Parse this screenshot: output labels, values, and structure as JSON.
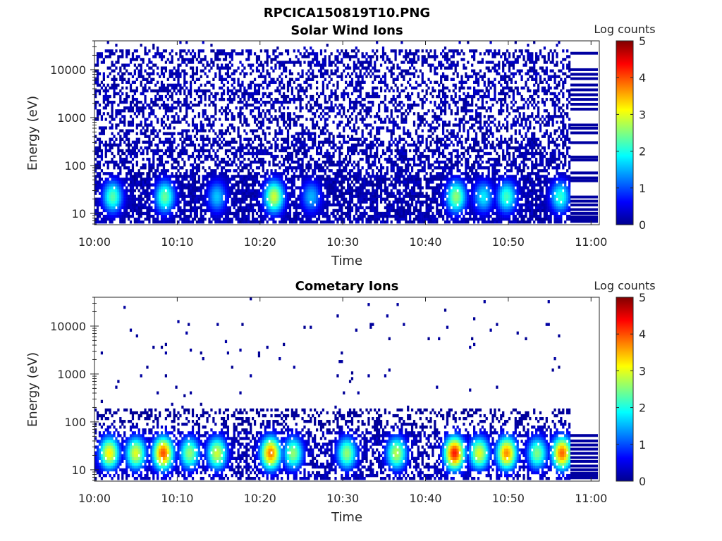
{
  "figure_title": "RPCICA150819T10.PNG",
  "colormap": [
    "#00008f",
    "#0000ff",
    "#0080ff",
    "#00ffff",
    "#80ff80",
    "#ffff00",
    "#ff8000",
    "#ff0000",
    "#800000"
  ],
  "chart_data": [
    {
      "type": "heatmap",
      "title": "Solar Wind Ions",
      "xlabel": "Time",
      "ylabel": "Energy (eV)",
      "x_range_min": [
        0,
        61
      ],
      "x_data_end_min": 57.5,
      "x_ticks": [
        "10:00",
        "10:10",
        "10:20",
        "10:30",
        "10:40",
        "10:50",
        "11:00"
      ],
      "x_tick_values_min": [
        0,
        10,
        20,
        30,
        40,
        50,
        60
      ],
      "y_scale": "log",
      "y_range": [
        5.8,
        40000
      ],
      "y_ticks": [
        "10",
        "100",
        "1000",
        "10000"
      ],
      "y_tick_values": [
        10,
        100,
        1000,
        10000
      ],
      "colorbar": {
        "label": "Log counts",
        "range": [
          0,
          5
        ],
        "ticks": [
          "0",
          "1",
          "2",
          "3",
          "4",
          "5"
        ]
      },
      "peak_events": [
        {
          "t": 2.2,
          "level": 2.3
        },
        {
          "t": 8.5,
          "level": 2.4
        },
        {
          "t": 14.8,
          "level": 1.6
        },
        {
          "t": 21.7,
          "level": 2.9
        },
        {
          "t": 26.2,
          "level": 1.5
        },
        {
          "t": 43.7,
          "level": 2.6
        },
        {
          "t": 47.0,
          "level": 1.8
        },
        {
          "t": 49.8,
          "level": 2.2
        },
        {
          "t": 56.3,
          "level": 2.1
        }
      ],
      "background_level": 0.3
    },
    {
      "type": "heatmap",
      "title": "Cometary Ions",
      "xlabel": "Time",
      "ylabel": "Energy (eV)",
      "x_range_min": [
        0,
        61
      ],
      "x_data_end_min": 57.5,
      "x_ticks": [
        "10:00",
        "10:10",
        "10:20",
        "10:30",
        "10:40",
        "10:50",
        "11:00"
      ],
      "x_tick_values_min": [
        0,
        10,
        20,
        30,
        40,
        50,
        60
      ],
      "y_scale": "log",
      "y_range": [
        5.8,
        40000
      ],
      "y_ticks": [
        "10",
        "100",
        "1000",
        "10000"
      ],
      "y_tick_values": [
        10,
        100,
        1000,
        10000
      ],
      "colorbar": {
        "label": "Log counts",
        "range": [
          0,
          5
        ],
        "ticks": [
          "0",
          "1",
          "2",
          "3",
          "4",
          "5"
        ]
      },
      "peak_events": [
        {
          "t": 1.8,
          "level": 3.2
        },
        {
          "t": 5.0,
          "level": 3.0
        },
        {
          "t": 8.3,
          "level": 4.0
        },
        {
          "t": 11.5,
          "level": 2.6
        },
        {
          "t": 14.8,
          "level": 2.9
        },
        {
          "t": 21.3,
          "level": 3.8
        },
        {
          "t": 24.0,
          "level": 2.6
        },
        {
          "t": 30.5,
          "level": 2.6
        },
        {
          "t": 36.5,
          "level": 2.8
        },
        {
          "t": 43.5,
          "level": 4.3
        },
        {
          "t": 46.5,
          "level": 3.0
        },
        {
          "t": 49.8,
          "level": 3.7
        },
        {
          "t": 53.5,
          "level": 2.5
        },
        {
          "t": 56.5,
          "level": 3.9
        }
      ],
      "background_level": 0.1
    }
  ]
}
